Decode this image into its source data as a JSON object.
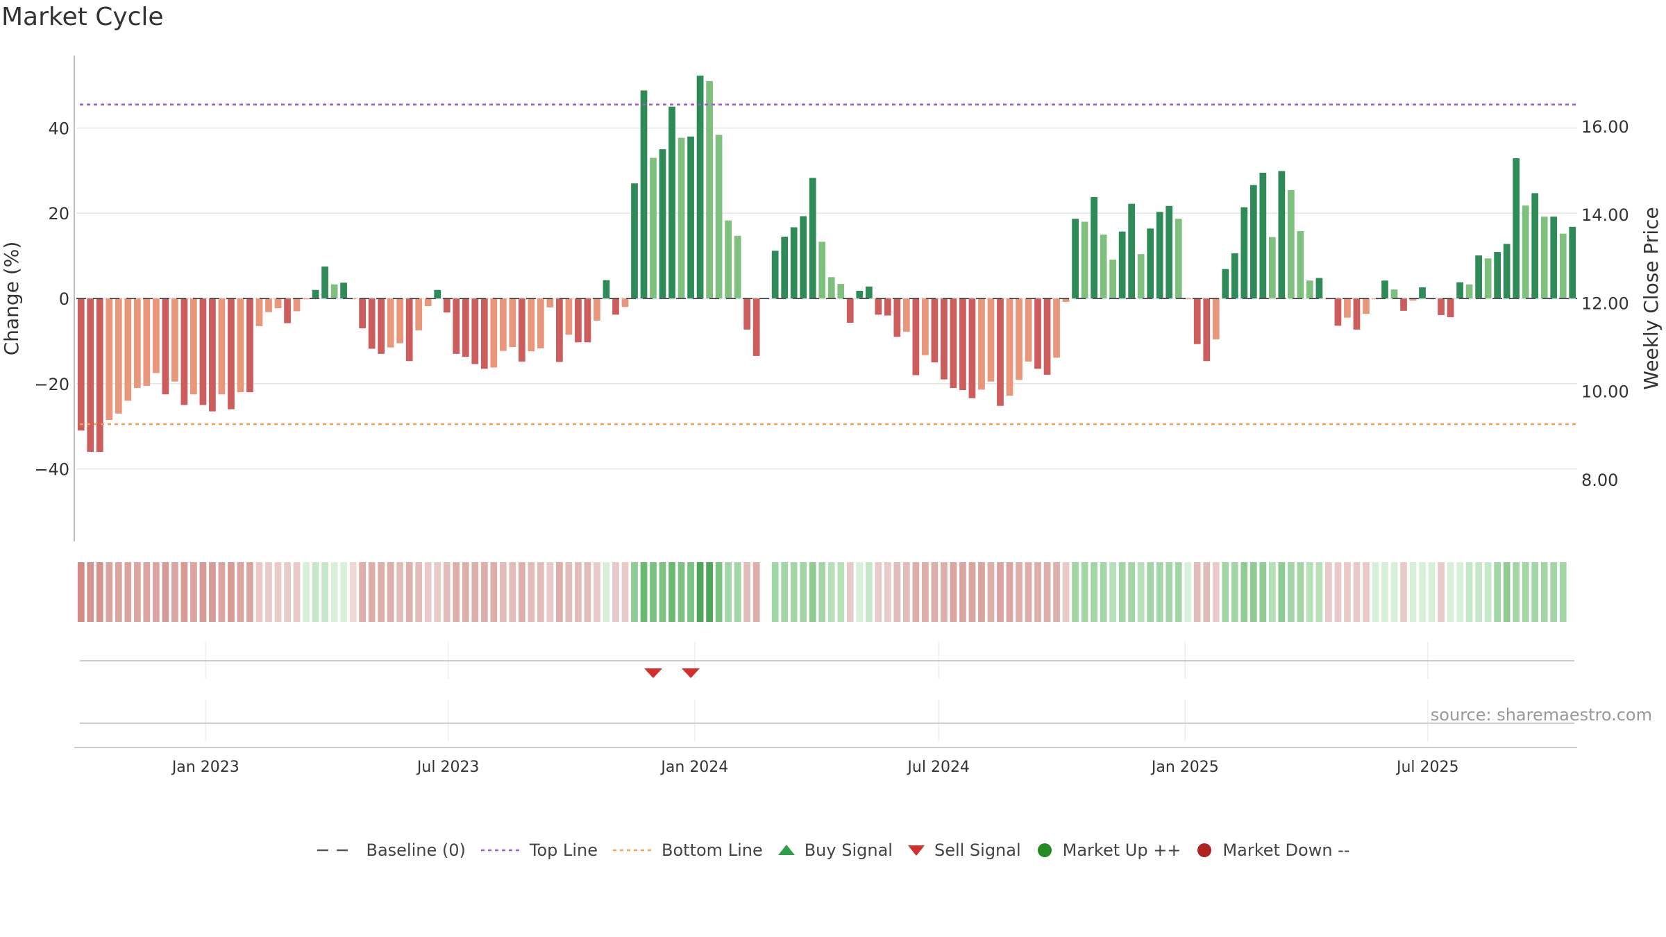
{
  "title": "Market Cycle",
  "source": "source: sharemaestro.com",
  "colors": {
    "strong_up": "#2e8b57",
    "mild_up": "#7fc07f",
    "strong_down": "#cd5c5c",
    "mild_down": "#e9967a",
    "top_line": "#9b59d0",
    "bottom_line": "#f0a050",
    "sell": "#d32f2f",
    "buy": "#2e9e4a",
    "market_up": "#228b22",
    "market_down": "#b22222"
  },
  "legend": [
    {
      "label": "Baseline (0)",
      "symbol": "dash"
    },
    {
      "label": "Top Line",
      "symbol": "dot-purple"
    },
    {
      "label": "Bottom Line",
      "symbol": "dot-orange"
    },
    {
      "label": "Buy Signal",
      "symbol": "triangle-up"
    },
    {
      "label": "Sell Signal",
      "symbol": "triangle-down"
    },
    {
      "label": "Market Up ++",
      "symbol": "circle-green"
    },
    {
      "label": "Market Down --",
      "symbol": "circle-red"
    }
  ],
  "chart_data": {
    "type": "bar",
    "x_start": "2022-09-30",
    "x_step_days": 7,
    "ylabel": "Change (%)",
    "ylabel_right": "Weekly Close Price",
    "ylim": [
      -57,
      57
    ],
    "yticks": [
      40,
      20,
      0,
      -20,
      -40
    ],
    "y2ticks": [
      "16.00",
      "14.00",
      "12.00",
      "10.00",
      "8.00"
    ],
    "y2ticks_values": [
      16,
      14,
      12,
      10,
      8
    ],
    "y2lim": [
      6.6,
      17.6
    ],
    "top_line": 45.5,
    "bottom_line": -29.5,
    "xticks": [
      {
        "label": "Jan 2023",
        "date": "2023-01-01"
      },
      {
        "label": "Jul 2023",
        "date": "2023-07-01"
      },
      {
        "label": "Jan 2024",
        "date": "2024-01-01"
      },
      {
        "label": "Jul 2024",
        "date": "2024-07-01"
      },
      {
        "label": "Jan 2025",
        "date": "2025-01-01"
      },
      {
        "label": "Jul 2025",
        "date": "2025-07-01"
      }
    ],
    "values": [
      -31,
      -36,
      -36,
      -28.5,
      -27,
      -24,
      -21,
      -20.5,
      -17.5,
      -22.5,
      -19.5,
      -25,
      -22.5,
      -25,
      -26.5,
      -22.5,
      -26,
      -22,
      -22,
      -6.5,
      -3.2,
      -2.3,
      -5.8,
      -3,
      0,
      2,
      7.5,
      3.3,
      3.7,
      0,
      -7,
      -11.8,
      -13,
      -11.5,
      -10.5,
      -14.7,
      -7.5,
      -1.8,
      2,
      -3.3,
      -13,
      -13.7,
      -15.4,
      -16.5,
      -16.2,
      -12.3,
      -11.4,
      -14.8,
      -12.4,
      -11.7,
      -2.1,
      -14.9,
      -8.5,
      -10.3,
      -10.3,
      -5.2,
      4.3,
      -3.8,
      -2,
      27,
      48.8,
      33,
      35,
      45,
      37.7,
      38,
      52.3,
      51,
      38.4,
      18.3,
      14.7,
      -7.3,
      -13.5,
      null,
      11.2,
      14.5,
      16.7,
      19.3,
      28.3,
      13.3,
      5,
      3.4,
      -5.7,
      1.8,
      2.8,
      -3.8,
      -4,
      -9,
      -7.8,
      -18,
      -13.3,
      -15,
      -19,
      -21,
      -21.5,
      -23.4,
      -21.4,
      -19.5,
      -25.2,
      -22.8,
      -19.1,
      -14.8,
      -16.5,
      -17.9,
      -13.9,
      -0.8,
      18.7,
      18,
      23.8,
      15,
      9.1,
      15.7,
      22.2,
      10.4,
      16.4,
      20.3,
      21.7,
      18.7,
      0,
      -10.7,
      -14.7,
      -9.6,
      6.9,
      10.6,
      21.4,
      26.6,
      29.5,
      14.4,
      29.9,
      25.4,
      15.8,
      4.2,
      4.8,
      0,
      -6.4,
      -4.5,
      -7.3,
      -3.6,
      0,
      4.2,
      2.1,
      -2.9,
      -0.5,
      2.6,
      0,
      -3.9,
      -4.4,
      3.8,
      3.3,
      10.1,
      9.4,
      10.9,
      12.8,
      32.9,
      21.8,
      24.7,
      19.2,
      19.2,
      15.2,
      16.8
    ],
    "colors": [
      "SD",
      "SD",
      "SD",
      "MD",
      "MD",
      "MD",
      "MD",
      "MD",
      "MD",
      "SD",
      "MD",
      "SD",
      "MD",
      "SD",
      "SD",
      "MD",
      "SD",
      "MD",
      "SD",
      "MD",
      "MD",
      "MD",
      "SD",
      "MD",
      "MD",
      "SU",
      "SU",
      "MU",
      "SU",
      "MD",
      "SD",
      "SD",
      "SD",
      "MD",
      "MD",
      "SD",
      "MD",
      "MD",
      "SU",
      "SD",
      "SD",
      "SD",
      "SD",
      "SD",
      "MD",
      "MD",
      "MD",
      "SD",
      "MD",
      "MD",
      "MD",
      "SD",
      "MD",
      "SD",
      "SD",
      "MD",
      "SU",
      "SD",
      "MD",
      "SU",
      "SU",
      "MU",
      "SU",
      "SU",
      "MU",
      "SU",
      "SU",
      "MU",
      "MU",
      "MU",
      "MU",
      "SD",
      "SD",
      "MU",
      "SU",
      "SU",
      "SU",
      "SU",
      "SU",
      "MU",
      "MU",
      "MU",
      "SD",
      "SU",
      "SU",
      "SD",
      "SD",
      "SD",
      "MD",
      "SD",
      "MD",
      "SD",
      "SD",
      "SD",
      "SD",
      "SD",
      "MD",
      "MD",
      "SD",
      "MD",
      "MD",
      "MD",
      "SD",
      "SD",
      "MD",
      "MD",
      "SU",
      "MU",
      "SU",
      "MU",
      "MU",
      "SU",
      "SU",
      "MU",
      "SU",
      "SU",
      "SU",
      "MU",
      "MD",
      "SD",
      "SD",
      "MD",
      "SU",
      "SU",
      "SU",
      "SU",
      "SU",
      "MU",
      "SU",
      "MU",
      "MU",
      "MU",
      "SU",
      "MD",
      "SD",
      "MD",
      "SD",
      "MD",
      "MD",
      "SU",
      "MU",
      "SD",
      "MD",
      "SU",
      "MD",
      "SD",
      "SD",
      "SU",
      "MU",
      "SU",
      "MU",
      "SU",
      "SU",
      "SU",
      "MU",
      "SU",
      "MU",
      "SU",
      "MU",
      "SU"
    ],
    "strip": [
      "9",
      "7",
      "7",
      "5",
      "5",
      "5",
      "5",
      "5",
      "5",
      "6",
      "5",
      "6",
      "5",
      "6",
      "6",
      "5",
      "6",
      "5",
      "5",
      "2",
      "2",
      "2",
      "2",
      "2",
      "c1",
      "c2",
      "c2",
      "c1",
      "c1",
      "1",
      "4",
      "4",
      "4",
      "4",
      "3",
      "4",
      "3",
      "2",
      "2",
      "3",
      "4",
      "4",
      "4",
      "4",
      "4",
      "3",
      "3",
      "4",
      "3",
      "3",
      "2",
      "4",
      "3",
      "3",
      "3",
      "2",
      "c1",
      "2",
      "2",
      "g4",
      "g6",
      "g5",
      "g5",
      "g6",
      "g5",
      "g5",
      "g8",
      "g8",
      "g5",
      "g3",
      "g3",
      "3",
      "4",
      null,
      "g3",
      "g3",
      "g3",
      "g3",
      "g4",
      "g3",
      "g2",
      "g2",
      "2",
      "c1",
      "c2",
      "2",
      "2",
      "3",
      "3",
      "4",
      "4",
      "4",
      "4",
      "5",
      "5",
      "5",
      "5",
      "4",
      "5",
      "5",
      "4",
      "4",
      "4",
      "4",
      "4",
      "2",
      "g3",
      "g3",
      "g3",
      "g3",
      "g2",
      "g3",
      "g3",
      "g2",
      "g3",
      "g3",
      "g3",
      "g3",
      "c1",
      "3",
      "3",
      "2",
      "g3",
      "g3",
      "g4",
      "g4",
      "g4",
      "g2",
      "g4",
      "g3",
      "g3",
      "g2",
      "g2",
      "2",
      "2",
      "2",
      "2",
      "2",
      "c1",
      "c1",
      "c1",
      "2",
      "c1",
      "c1",
      "c1",
      "2",
      "c1",
      "c1",
      "c2",
      "c2",
      "c2",
      "g3",
      "g4",
      "g3",
      "g3",
      "g3",
      "g3",
      "g3",
      "g3"
    ],
    "sell_signals": [
      "2023-12-01",
      "2023-12-29"
    ],
    "buy_signals": [],
    "grid": true
  }
}
